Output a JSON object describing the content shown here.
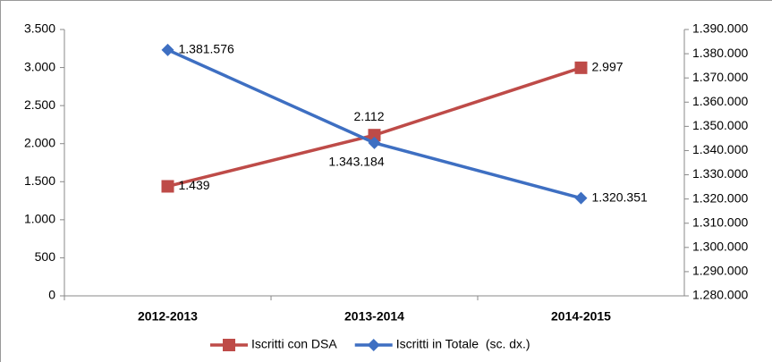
{
  "chart_data": {
    "type": "line",
    "categories": [
      "2012-2013",
      "2013-2014",
      "2014-2015"
    ],
    "series": [
      {
        "name": "Iscritti con DSA",
        "color": "#be4b48",
        "marker": "square",
        "values": [
          1439,
          2112,
          2997
        ],
        "value_labels": [
          "1.439",
          "2.112",
          "2.997"
        ]
      },
      {
        "name": "Iscritti in Totale  (sc. dx.)",
        "color": "#3e6fc2",
        "marker": "diamond",
        "axis": "y2",
        "values": [
          1381576,
          1343184,
          1320351
        ],
        "value_labels": [
          "1.381.576",
          "1.343.184",
          "1.320.351"
        ]
      }
    ],
    "ylim": [
      0,
      3500
    ],
    "yticks": [
      0,
      500,
      {
        "value": 1000,
        "label": "1.000"
      },
      {
        "value": 1500,
        "label": "1.500"
      },
      {
        "value": 2000,
        "label": "2.000"
      },
      {
        "value": 2500,
        "label": "2.500"
      },
      {
        "value": 3000,
        "label": "3.000"
      },
      {
        "value": 3500,
        "label": "3.500"
      }
    ],
    "y2lim": [
      1280000,
      1390000
    ],
    "y2ticks": [
      {
        "value": 1280000,
        "label": "1.280.000"
      },
      {
        "value": 1290000,
        "label": "1.290.000"
      },
      {
        "value": 1300000,
        "label": "1.300.000"
      },
      {
        "value": 1310000,
        "label": "1.310.000"
      },
      {
        "value": 1320000,
        "label": "1.320.000"
      },
      {
        "value": 1330000,
        "label": "1.330.000"
      },
      {
        "value": 1340000,
        "label": "1.340.000"
      },
      {
        "value": 1350000,
        "label": "1.350.000"
      },
      {
        "value": 1360000,
        "label": "1.360.000"
      },
      {
        "value": 1370000,
        "label": "1.370.000"
      },
      {
        "value": 1380000,
        "label": "1.380.000"
      },
      {
        "value": 1390000,
        "label": "1.390.000"
      }
    ],
    "legend": "bottom"
  }
}
